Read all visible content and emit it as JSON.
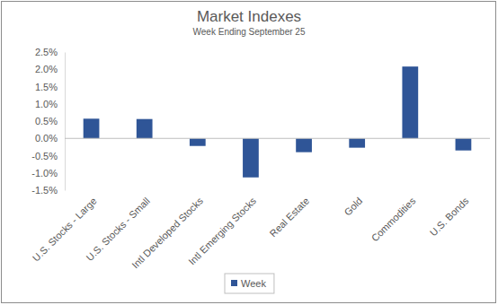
{
  "chart_data": {
    "type": "bar",
    "title": "Market Indexes",
    "subtitle": "Week Ending September 25",
    "categories": [
      "U.S. Stocks - Large",
      "U.S. Stocks - Small",
      "Intl Developed Stocks",
      "Intl Emerging Stocks",
      "Real Estate",
      "Gold",
      "Commodities",
      "U.S. Bonds"
    ],
    "series": [
      {
        "name": "Week",
        "color": "#2f5597",
        "values": [
          0.57,
          0.56,
          -0.22,
          -1.13,
          -0.4,
          -0.27,
          2.08,
          -0.35
        ]
      }
    ],
    "ylim": [
      -1.5,
      2.5
    ],
    "yticks": [
      {
        "value": -1.5,
        "label": "-1.5%"
      },
      {
        "value": -1.0,
        "label": "-1.0%"
      },
      {
        "value": -0.5,
        "label": "-0.5%"
      },
      {
        "value": 0,
        "label": "0.0%"
      },
      {
        "value": 0.5,
        "label": "0.5%"
      },
      {
        "value": 1.0,
        "label": "1.0%"
      },
      {
        "value": 1.5,
        "label": "1.5%"
      },
      {
        "value": 2.0,
        "label": "2.0%"
      },
      {
        "value": 2.5,
        "label": "2.5%"
      }
    ],
    "grid": false,
    "legend": "bottom"
  }
}
